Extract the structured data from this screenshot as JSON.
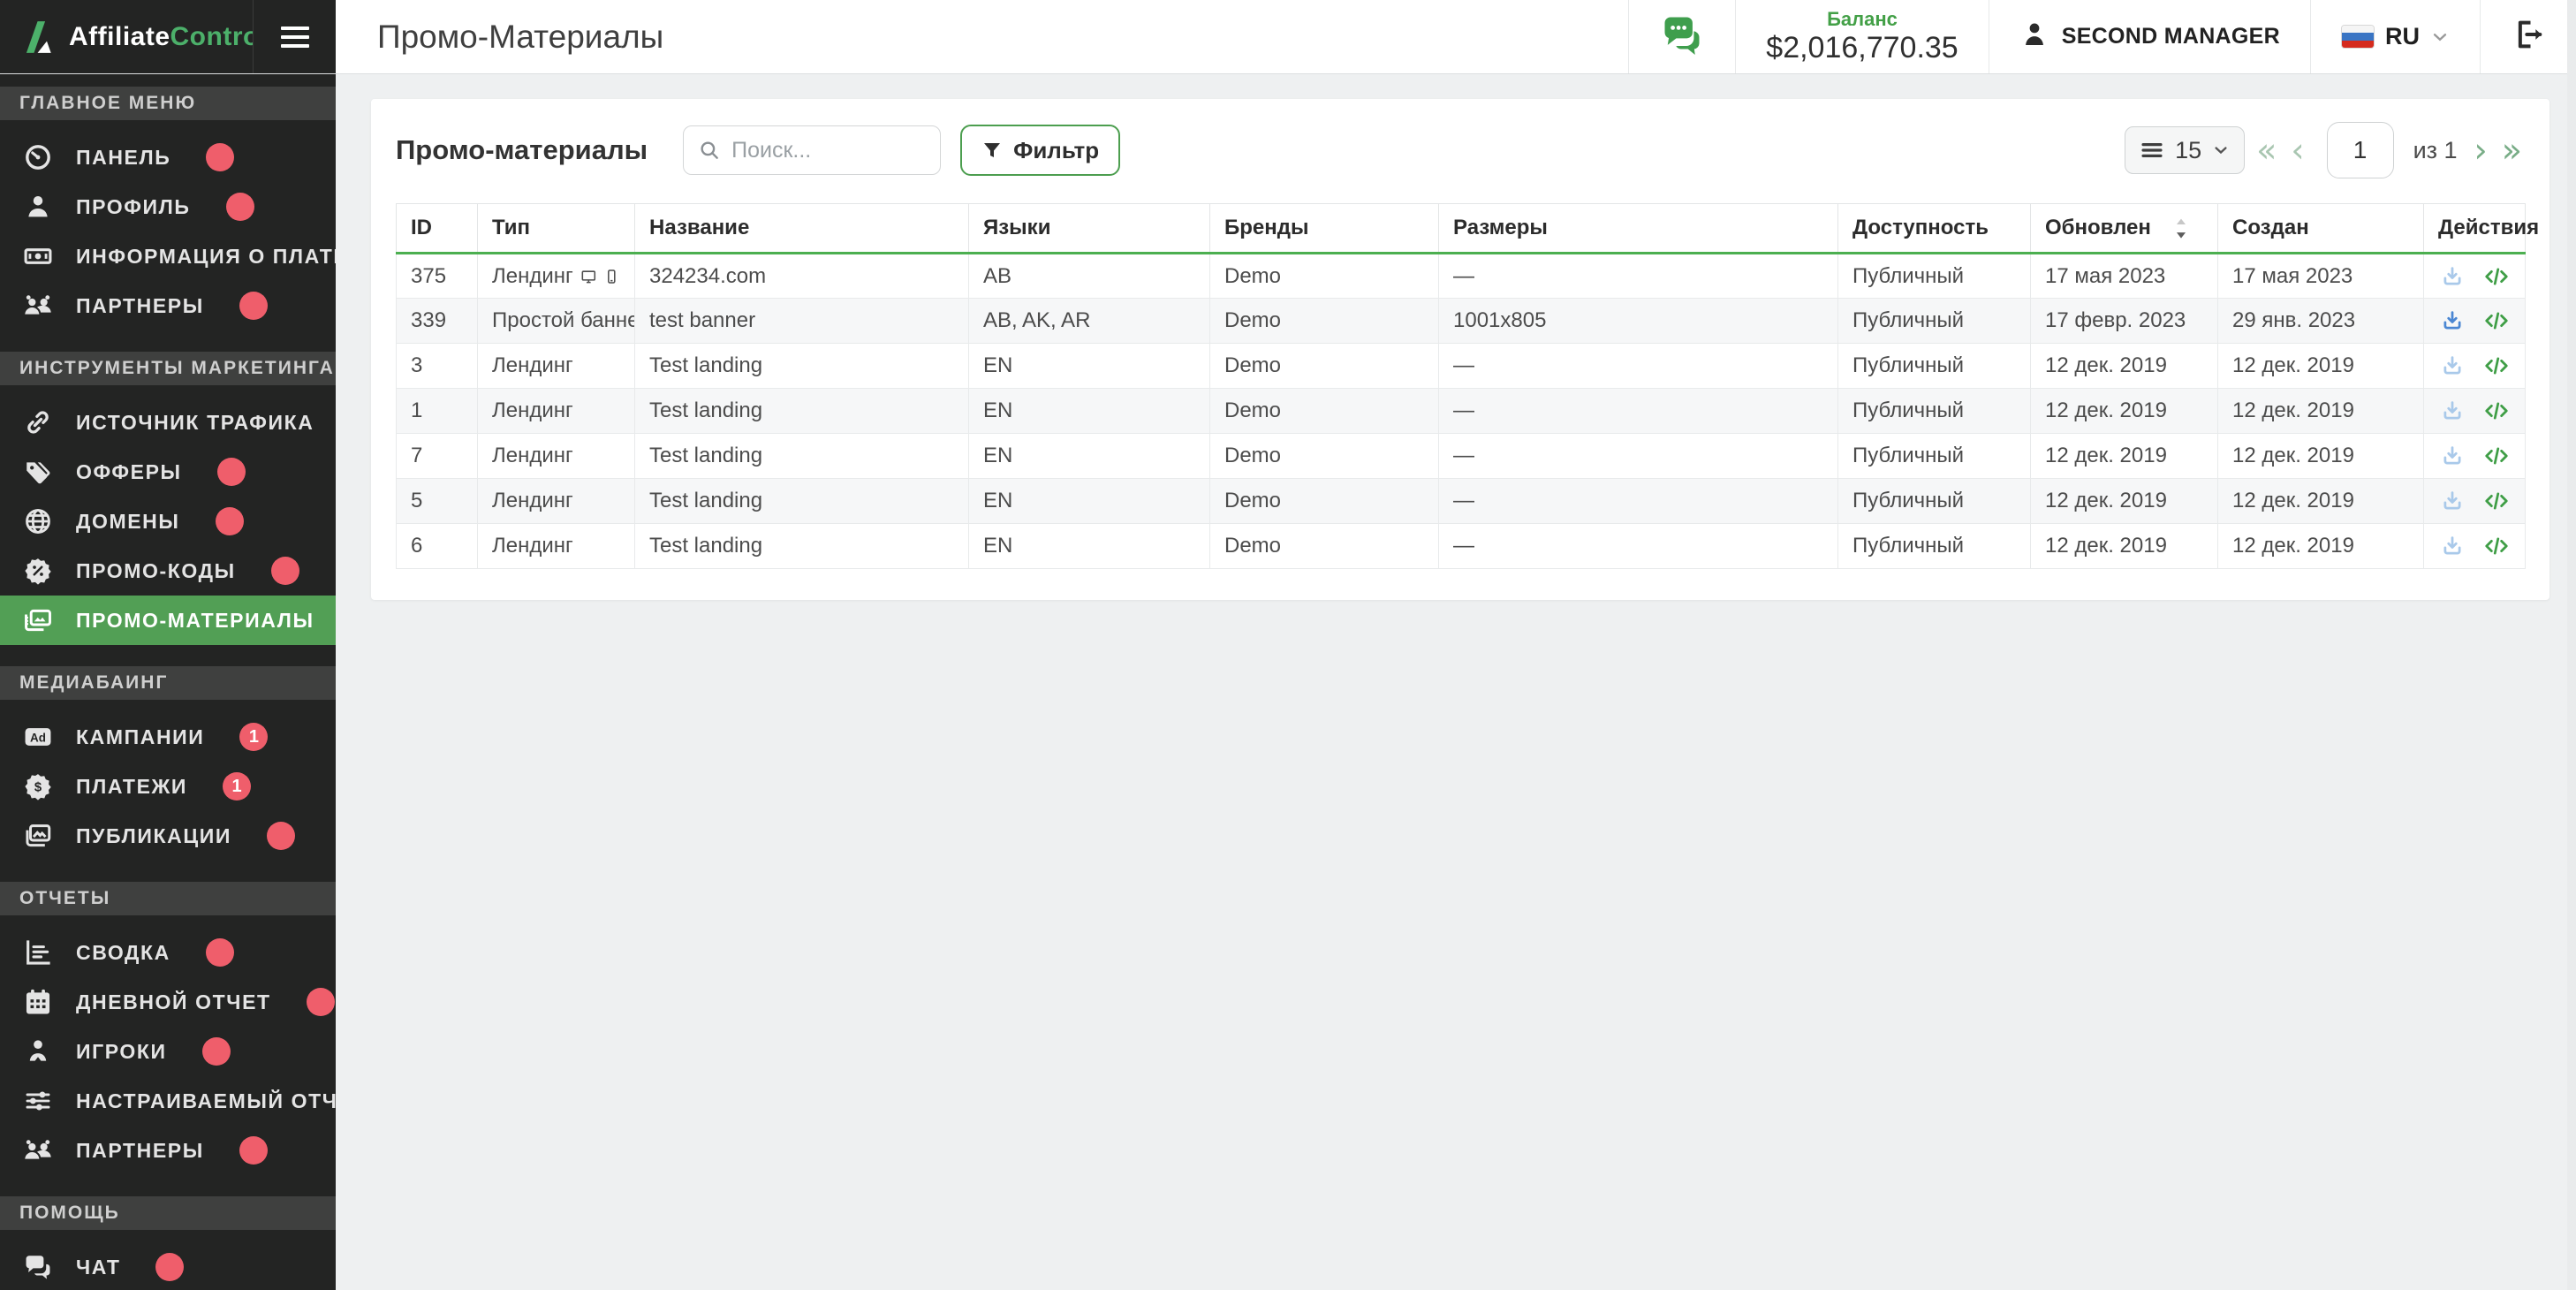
{
  "brand": {
    "name_primary": "Affiliate",
    "name_secondary": "Control"
  },
  "page": {
    "title": "Промо-Материалы"
  },
  "header": {
    "balance_label": "Баланс",
    "balance_value": "$2,016,770.35",
    "user_name": "SECOND MANAGER",
    "language_code": "RU"
  },
  "sidebar": {
    "sections": [
      {
        "key": "main-menu",
        "label": "ГЛАВНОЕ МЕНЮ",
        "items": [
          {
            "key": "dashboard",
            "label": "ПАНЕЛЬ",
            "icon": "gauge-icon"
          },
          {
            "key": "profile",
            "label": "ПРОФИЛЬ",
            "icon": "user-icon"
          },
          {
            "key": "payment-info",
            "label": "ИНФОРМАЦИЯ О ПЛАТЕЖАХ",
            "icon": "banknote-icon"
          },
          {
            "key": "partners",
            "label": "ПАРТНЕРЫ",
            "icon": "users-icon"
          }
        ]
      },
      {
        "key": "marketing-tools",
        "label": "ИНСТРУМЕНТЫ МАРКЕТИНГА",
        "items": [
          {
            "key": "traffic-source",
            "label": "ИСТОЧНИК ТРАФИКА",
            "icon": "link-icon"
          },
          {
            "key": "offers",
            "label": "ОФФЕРЫ",
            "icon": "tags-icon"
          },
          {
            "key": "domains",
            "label": "ДОМЕНЫ",
            "icon": "globe-icon"
          },
          {
            "key": "promo-codes",
            "label": "ПРОМО-КОДЫ",
            "icon": "percent-badge-icon"
          },
          {
            "key": "promo-materials",
            "label": "ПРОМО-МАТЕРИАЛЫ",
            "icon": "media-cards-icon",
            "active": true
          }
        ]
      },
      {
        "key": "media-buying",
        "label": "МЕДИАБАИНГ",
        "items": [
          {
            "key": "campaigns",
            "label": "КАМПАНИИ",
            "icon": "ad-icon",
            "badge": "1"
          },
          {
            "key": "payments",
            "label": "ПЛАТЕЖИ",
            "icon": "dollar-badge-icon",
            "badge": "1"
          },
          {
            "key": "publications",
            "label": "ПУБЛИКАЦИИ",
            "icon": "photos-icon"
          }
        ]
      },
      {
        "key": "reports",
        "label": "ОТЧЕТЫ",
        "items": [
          {
            "key": "summary",
            "label": "СВОДКА",
            "icon": "chart-lines-icon"
          },
          {
            "key": "daily-report",
            "label": "ДНЕВНОЙ ОТЧЕТ",
            "icon": "calendar-icon"
          },
          {
            "key": "players",
            "label": "ИГРОКИ",
            "icon": "player-icon"
          },
          {
            "key": "custom-report",
            "label": "НАСТРАИВАЕМЫЙ ОТЧЕТ",
            "icon": "sliders-icon"
          },
          {
            "key": "partners-report",
            "label": "ПАРТНЕРЫ",
            "icon": "users-icon"
          }
        ]
      },
      {
        "key": "help",
        "label": "ПОМОЩЬ",
        "items": [
          {
            "key": "chat",
            "label": "ЧАТ",
            "icon": "chat-bubbles-icon"
          }
        ]
      }
    ]
  },
  "toolbar": {
    "heading": "Промо-материалы",
    "search_placeholder": "Поиск...",
    "filter_label": "Фильтр"
  },
  "pagination": {
    "page_size": "15",
    "current_page": "1",
    "of_label": "из 1"
  },
  "table": {
    "columns": [
      {
        "label": "ID"
      },
      {
        "label": "Тип"
      },
      {
        "label": "Название"
      },
      {
        "label": "Языки"
      },
      {
        "label": "Бренды"
      },
      {
        "label": "Размеры"
      },
      {
        "label": "Доступность"
      },
      {
        "label": "Обновлен",
        "sortable": true
      },
      {
        "label": "Создан"
      },
      {
        "label": "Действия"
      }
    ],
    "rows": [
      {
        "id": "375",
        "type": "Лендинг",
        "devices": true,
        "name": "324234.com",
        "languages": "AB",
        "brands": "Demo",
        "sizes": "—",
        "availability": "Публичный",
        "updated": "17 мая 2023",
        "created": "17 мая 2023",
        "download_active": false
      },
      {
        "id": "339",
        "type": "Простой баннер",
        "devices": false,
        "name": "test banner",
        "languages": "AB, AK, AR",
        "brands": "Demo",
        "sizes": "1001x805",
        "availability": "Публичный",
        "updated": "17 февр. 2023",
        "created": "29 янв. 2023",
        "download_active": true
      },
      {
        "id": "3",
        "type": "Лендинг",
        "devices": false,
        "name": "Test landing",
        "languages": "EN",
        "brands": "Demo",
        "sizes": "—",
        "availability": "Публичный",
        "updated": "12 дек. 2019",
        "created": "12 дек. 2019",
        "download_active": false
      },
      {
        "id": "1",
        "type": "Лендинг",
        "devices": false,
        "name": "Test landing",
        "languages": "EN",
        "brands": "Demo",
        "sizes": "—",
        "availability": "Публичный",
        "updated": "12 дек. 2019",
        "created": "12 дек. 2019",
        "download_active": false
      },
      {
        "id": "7",
        "type": "Лендинг",
        "devices": false,
        "name": "Test landing",
        "languages": "EN",
        "brands": "Demo",
        "sizes": "—",
        "availability": "Публичный",
        "updated": "12 дек. 2019",
        "created": "12 дек. 2019",
        "download_active": false
      },
      {
        "id": "5",
        "type": "Лендинг",
        "devices": false,
        "name": "Test landing",
        "languages": "EN",
        "brands": "Demo",
        "sizes": "—",
        "availability": "Публичный",
        "updated": "12 дек. 2019",
        "created": "12 дек. 2019",
        "download_active": false
      },
      {
        "id": "6",
        "type": "Лендинг",
        "devices": false,
        "name": "Test landing",
        "languages": "EN",
        "brands": "Demo",
        "sizes": "—",
        "availability": "Публичный",
        "updated": "12 дек. 2019",
        "created": "12 дек. 2019",
        "download_active": false
      }
    ]
  },
  "pagination_chevrons": {
    "first": "«",
    "prev": "‹",
    "next": "›",
    "last": "»"
  },
  "colors": {
    "accent_green": "#4caf50",
    "active_item_green": "#529f55",
    "logo_green": "#4cb06a",
    "badge_red": "#ef5e6b",
    "balance_green": "#43a047",
    "download_active": "#4b87d3",
    "download_inactive": "#a9c9ea",
    "code_icon_green": "#3f9e46",
    "sidebar_bg": "#232423",
    "page_bg": "#eef0f1"
  }
}
